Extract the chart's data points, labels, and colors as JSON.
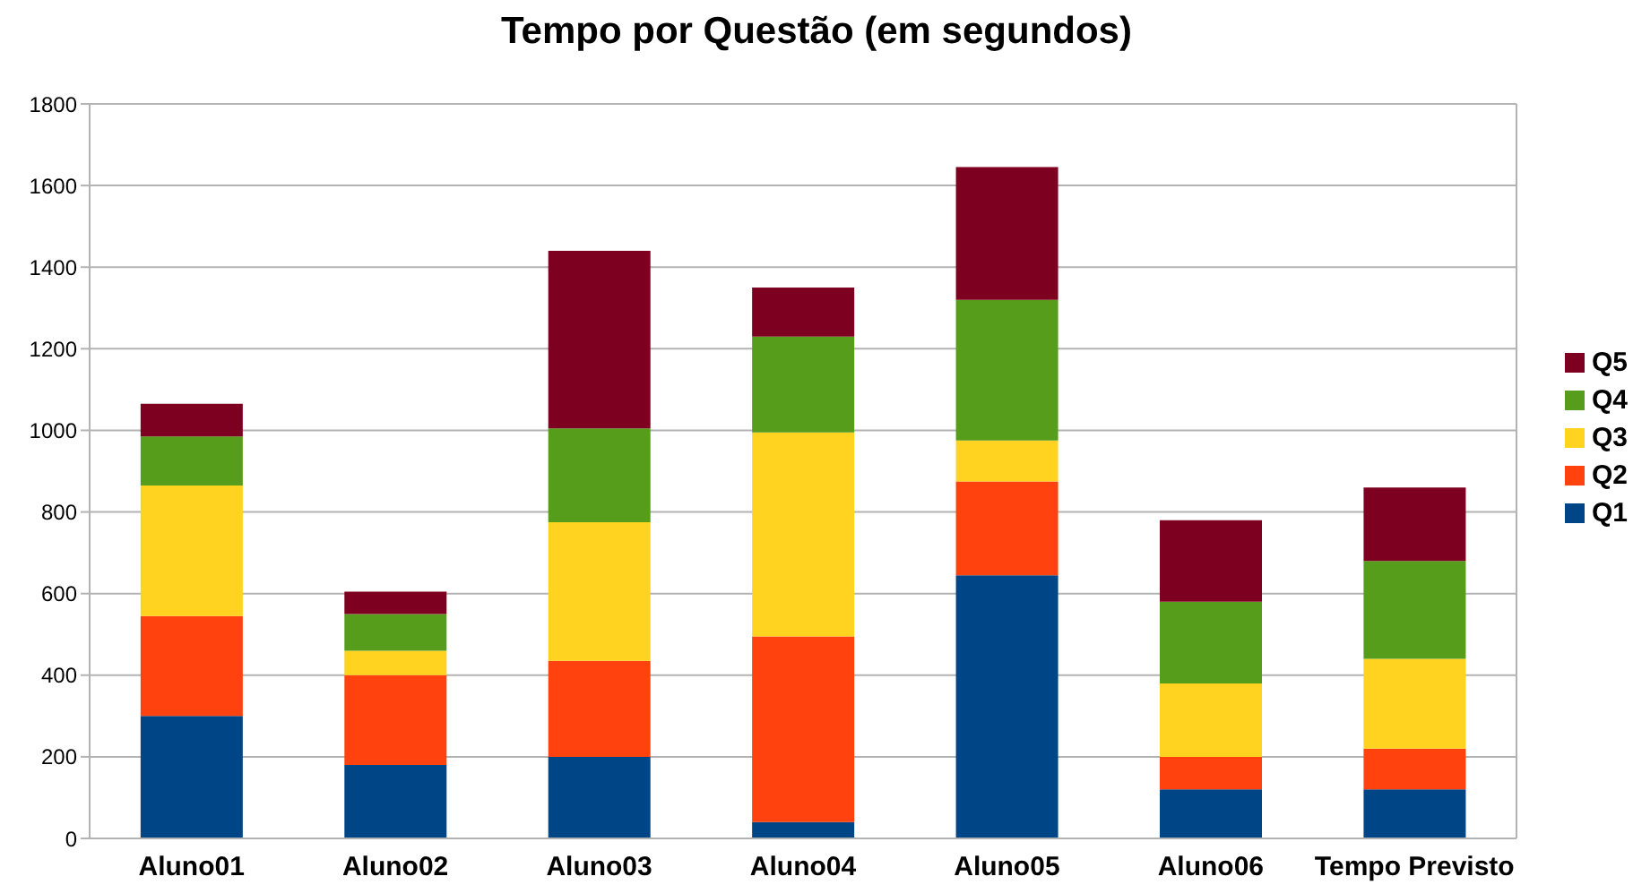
{
  "chart_data": {
    "type": "bar",
    "title": "Tempo por Questão (em segundos)",
    "categories": [
      "Aluno01",
      "Aluno02",
      "Aluno03",
      "Aluno04",
      "Aluno05",
      "Aluno06",
      "Tempo Previsto"
    ],
    "series": [
      {
        "name": "Q1",
        "color": "#004586",
        "values": [
          300,
          180,
          200,
          40,
          645,
          120,
          120
        ]
      },
      {
        "name": "Q2",
        "color": "#ff420e",
        "values": [
          245,
          220,
          235,
          455,
          230,
          80,
          100
        ]
      },
      {
        "name": "Q3",
        "color": "#ffd320",
        "values": [
          320,
          60,
          340,
          500,
          100,
          180,
          220
        ]
      },
      {
        "name": "Q4",
        "color": "#579d1c",
        "values": [
          120,
          90,
          230,
          235,
          345,
          200,
          240
        ]
      },
      {
        "name": "Q5",
        "color": "#7e0021",
        "values": [
          80,
          55,
          435,
          120,
          325,
          200,
          180
        ]
      }
    ],
    "stacked": true,
    "ylim": [
      0,
      1800
    ],
    "yticks": [
      0,
      200,
      400,
      600,
      800,
      1000,
      1200,
      1400,
      1600,
      1800
    ],
    "grid": "y",
    "legend": "right"
  }
}
